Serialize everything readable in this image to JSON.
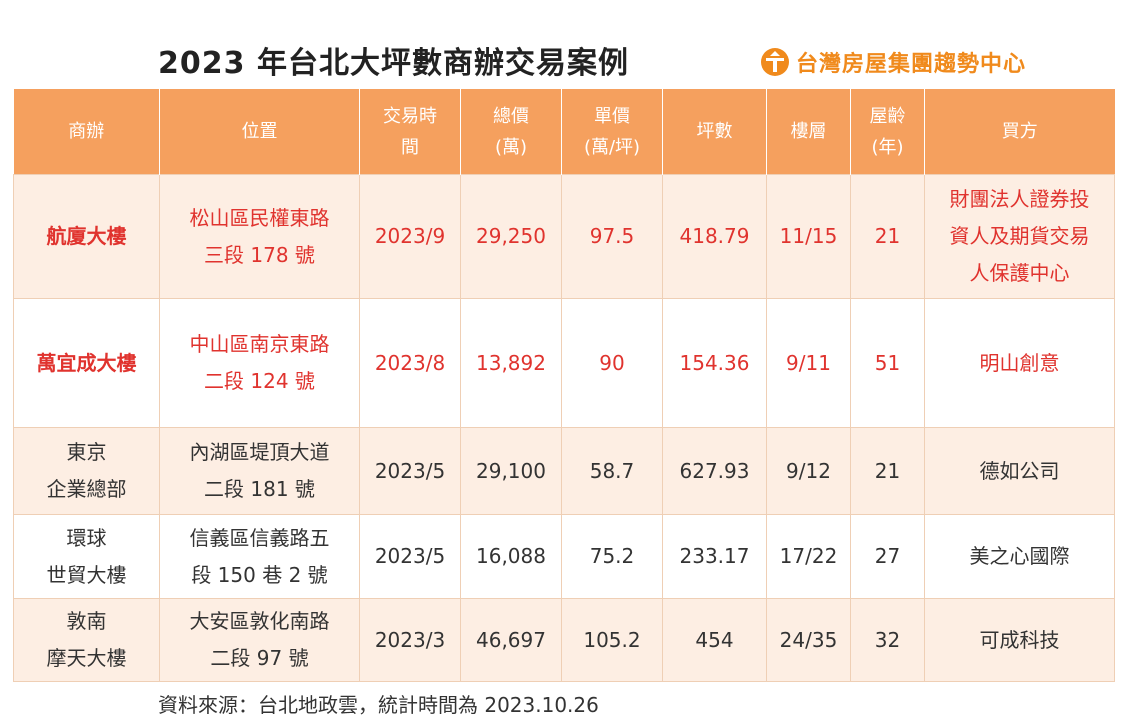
{
  "title": "2023 年台北大坪數商辦交易案例",
  "brand": {
    "text": "台灣房屋集團趨勢中心",
    "logo_icon": "taiwan-realty-logo-icon",
    "color": "#f08a1c"
  },
  "colors": {
    "header_bg": "#f5a05e",
    "stripe_bg": "#fdeee3",
    "highlight_text": "#e0332e",
    "normal_text": "#333333"
  },
  "table": {
    "headers": [
      [
        "商辦"
      ],
      [
        "位置"
      ],
      [
        "交易時",
        "間"
      ],
      [
        "總價",
        "(萬)"
      ],
      [
        "單價",
        "(萬/坪)"
      ],
      [
        "坪數"
      ],
      [
        "樓層"
      ],
      [
        "屋齡",
        "(年)"
      ],
      [
        "買方"
      ]
    ],
    "rows": [
      {
        "highlight": true,
        "building": [
          "航廈大樓"
        ],
        "location": [
          "松山區民權東路",
          "三段 178 號"
        ],
        "date": "2023/9",
        "total": "29,250",
        "unit_price": "97.5",
        "area": "418.79",
        "floor": "11/15",
        "age": "21",
        "buyer": [
          "財團法人證券投",
          "資人及期貨交易",
          "人保護中心"
        ]
      },
      {
        "highlight": true,
        "building": [
          "萬宜成大樓"
        ],
        "location": [
          "中山區南京東路",
          "二段 124 號"
        ],
        "date": "2023/8",
        "total": "13,892",
        "unit_price": "90",
        "area": "154.36",
        "floor": "9/11",
        "age": "51",
        "buyer": [
          "明山創意"
        ]
      },
      {
        "highlight": false,
        "building": [
          "東京",
          "企業總部"
        ],
        "location": [
          "內湖區堤頂大道",
          "二段 181 號"
        ],
        "date": "2023/5",
        "total": "29,100",
        "unit_price": "58.7",
        "area": "627.93",
        "floor": "9/12",
        "age": "21",
        "buyer": [
          "德如公司"
        ]
      },
      {
        "highlight": false,
        "building": [
          "環球",
          "世貿大樓"
        ],
        "location": [
          "信義區信義路五",
          "段 150 巷 2 號"
        ],
        "date": "2023/5",
        "total": "16,088",
        "unit_price": "75.2",
        "area": "233.17",
        "floor": "17/22",
        "age": "27",
        "buyer": [
          "美之心國際"
        ]
      },
      {
        "highlight": false,
        "building": [
          "敦南",
          "摩天大樓"
        ],
        "location": [
          "大安區敦化南路",
          "二段 97 號"
        ],
        "date": "2023/3",
        "total": "46,697",
        "unit_price": "105.2",
        "area": "454",
        "floor": "24/35",
        "age": "32",
        "buyer": [
          "可成科技"
        ]
      }
    ]
  },
  "source": "資料來源：台北地政雲，統計時間為 2023.10.26"
}
